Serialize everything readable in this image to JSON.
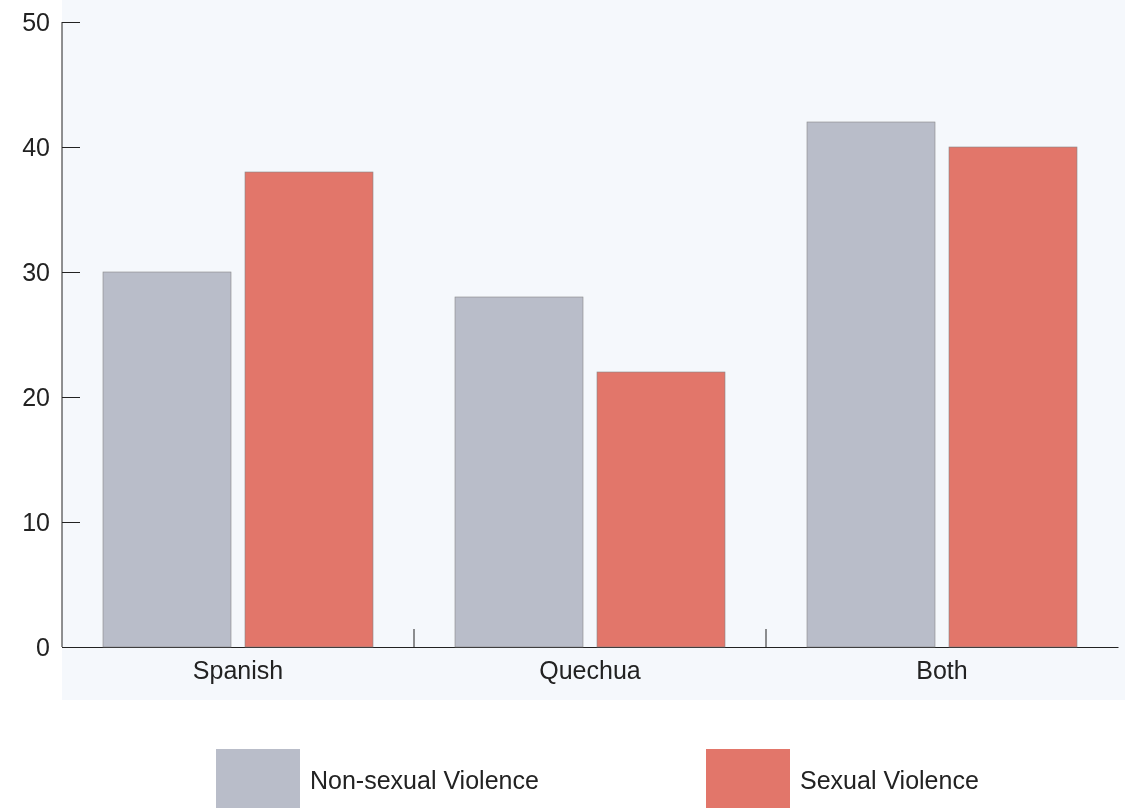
{
  "chart_data": {
    "type": "bar",
    "categories": [
      "Spanish",
      "Quechua",
      "Both"
    ],
    "series": [
      {
        "name": "Non-sexual Violence",
        "color": "#b9bdc9",
        "values": [
          30,
          28,
          42
        ]
      },
      {
        "name": "Sexual Violence",
        "color": "#e2766a",
        "values": [
          38,
          22,
          40
        ]
      }
    ],
    "ylim": [
      0,
      50
    ],
    "yticks": [
      0,
      10,
      20,
      30,
      40,
      50
    ],
    "legend": "bottom"
  }
}
